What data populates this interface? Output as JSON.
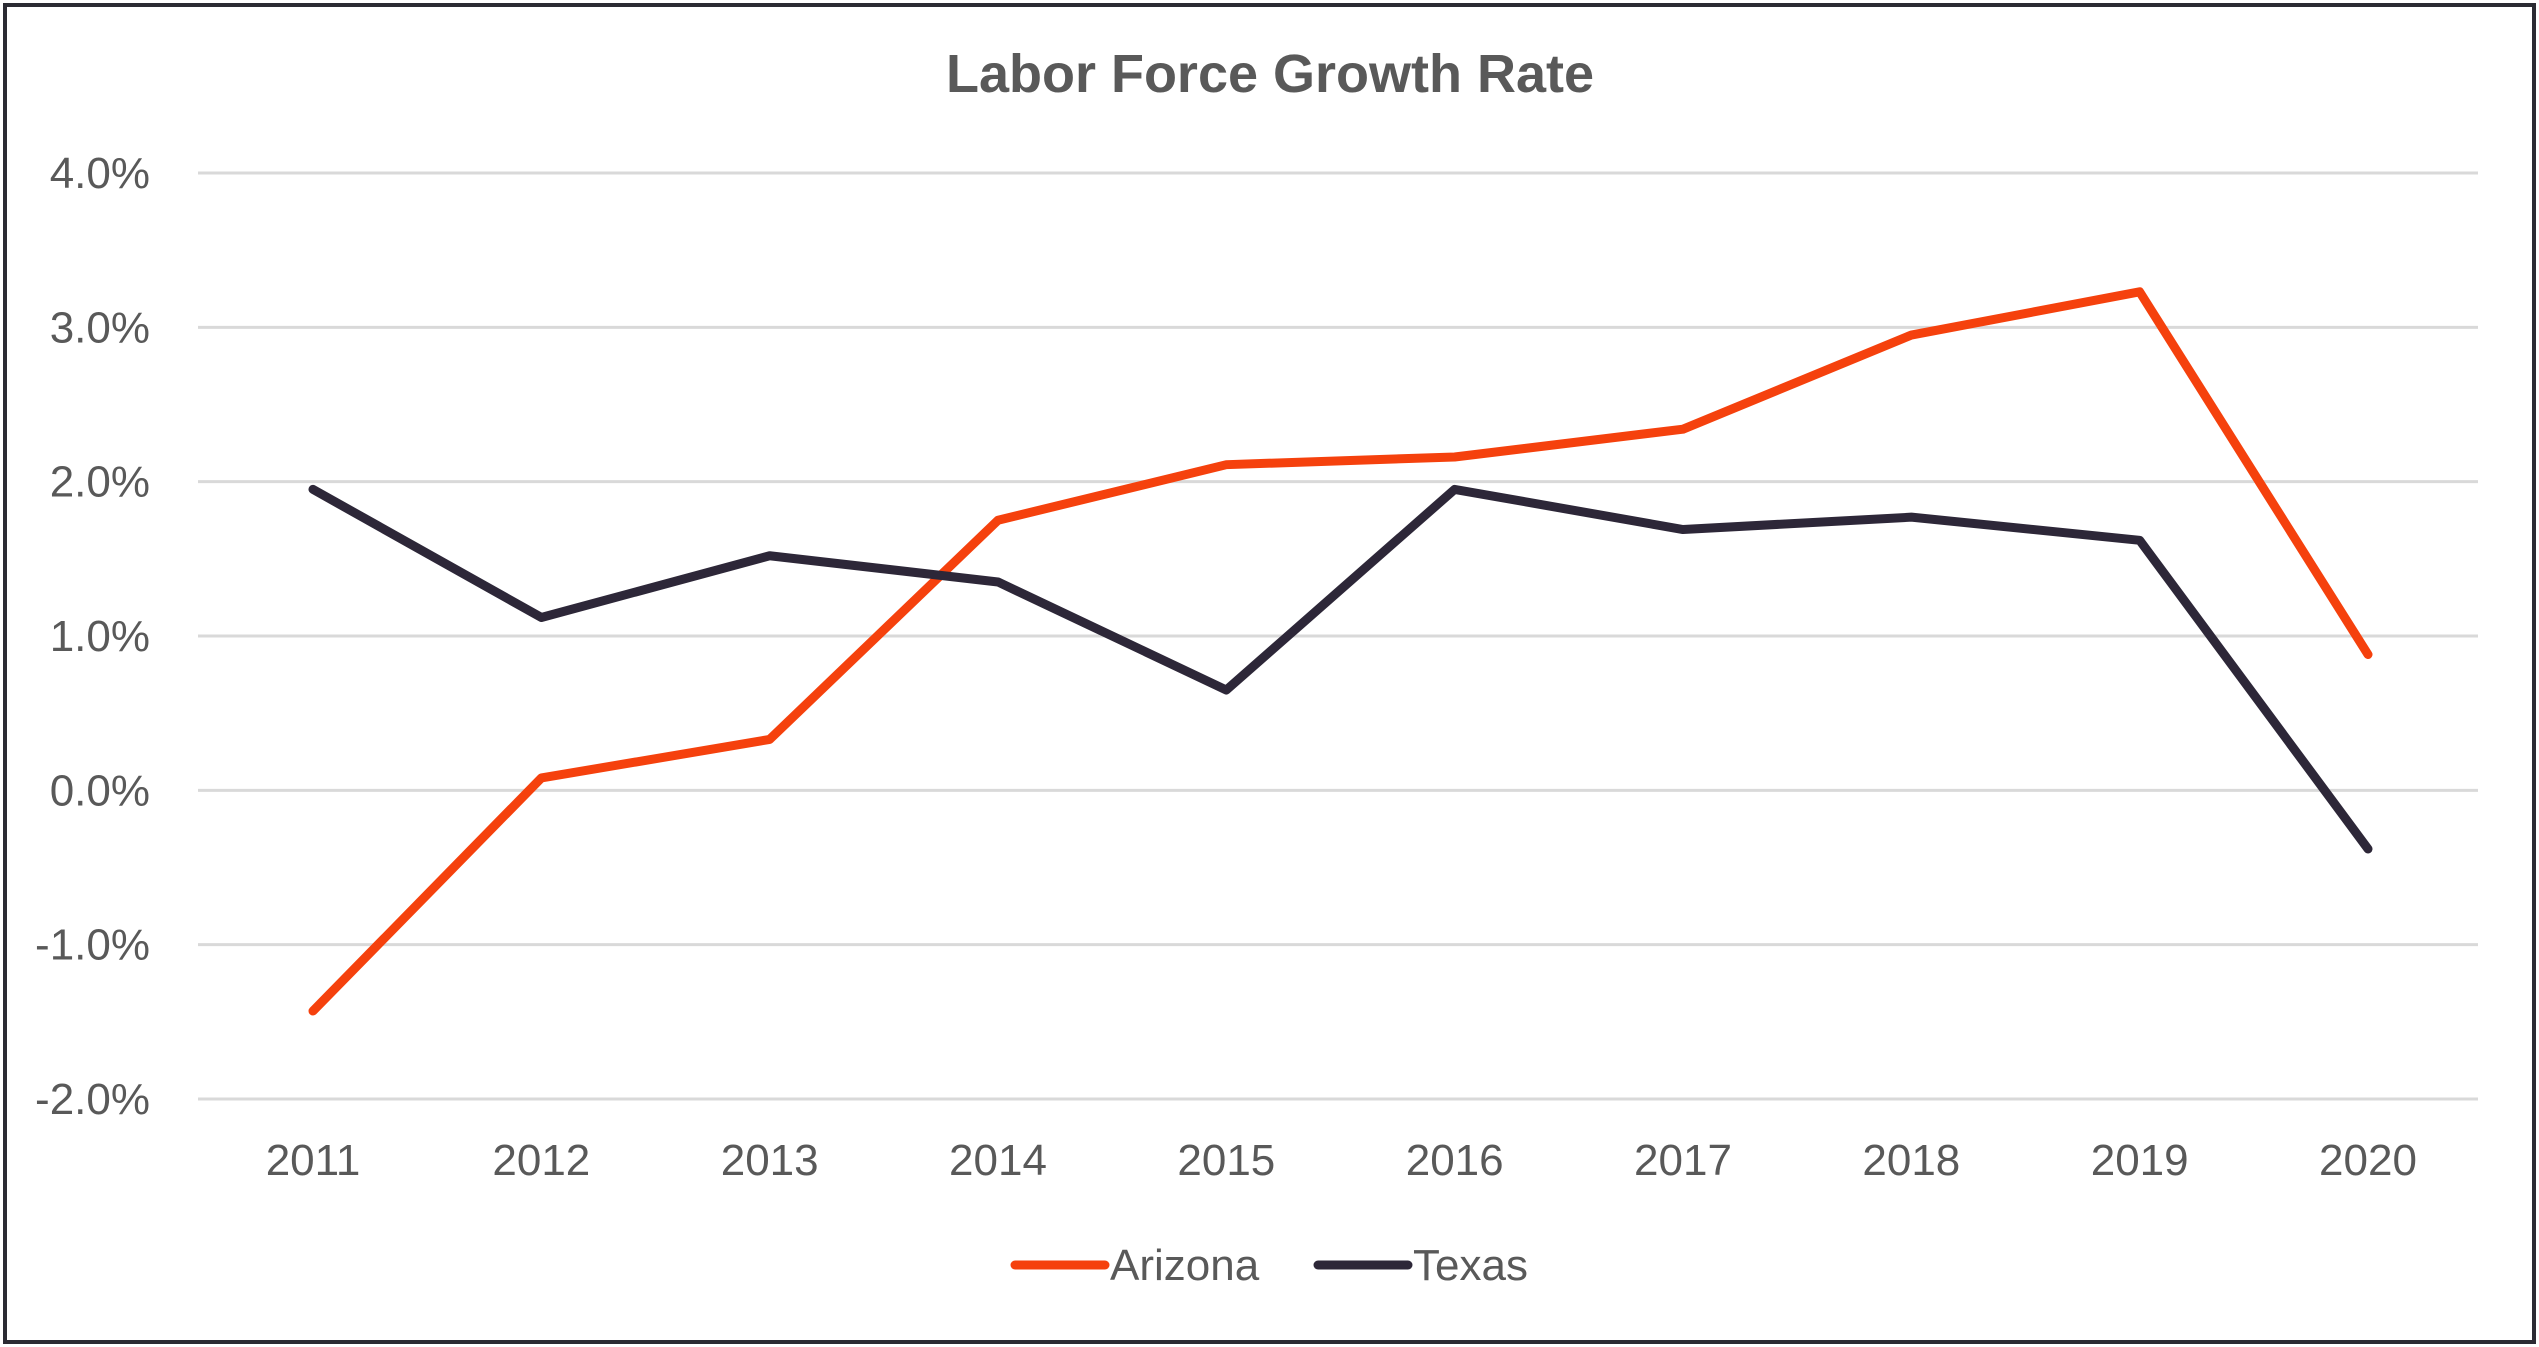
{
  "chart_data": {
    "type": "line",
    "title": "Labor Force Growth Rate",
    "xlabel": "",
    "ylabel": "",
    "categories": [
      "2011",
      "2012",
      "2013",
      "2014",
      "2015",
      "2016",
      "2017",
      "2018",
      "2019",
      "2020"
    ],
    "y_ticks": [
      "4.0%",
      "3.0%",
      "2.0%",
      "1.0%",
      "0.0%",
      "-1.0%",
      "-2.0%"
    ],
    "ylim": [
      -2.0,
      4.0
    ],
    "y_unit": "%",
    "grid": "horizontal",
    "legend_position": "bottom",
    "series": [
      {
        "name": "Arizona",
        "color": "#f5410d",
        "values": [
          -1.43,
          0.08,
          0.33,
          1.75,
          2.11,
          2.16,
          2.34,
          2.95,
          3.23,
          0.88
        ]
      },
      {
        "name": "Texas",
        "color": "#2d2738",
        "values": [
          1.95,
          1.12,
          1.52,
          1.35,
          0.65,
          1.95,
          1.69,
          1.77,
          1.62,
          -0.38
        ]
      }
    ]
  }
}
